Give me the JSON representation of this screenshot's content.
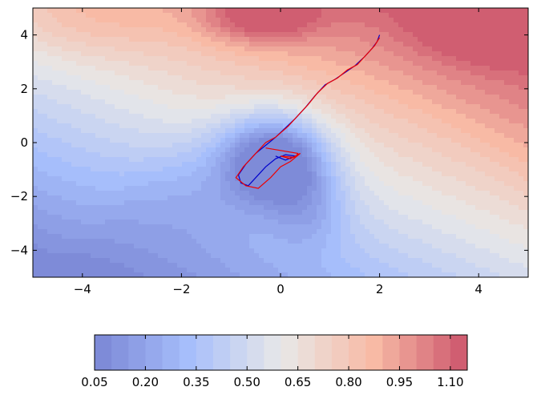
{
  "chart_data": {
    "type": "contour",
    "title": "",
    "xlabel": "",
    "ylabel": "",
    "xlim": [
      -5,
      5
    ],
    "ylim": [
      -5,
      5
    ],
    "xticks": [
      -4,
      -2,
      0,
      2,
      4
    ],
    "yticks": [
      -4,
      -2,
      0,
      2,
      4
    ],
    "xtick_labels": [
      "−4",
      "−2",
      "0",
      "2",
      "4"
    ],
    "ytick_labels": [
      "−4",
      "−2",
      "0",
      "2",
      "4"
    ],
    "colormap": "coolwarm",
    "contour_levels": [
      0.05,
      0.1,
      0.15,
      0.2,
      0.25,
      0.3,
      0.35,
      0.4,
      0.45,
      0.5,
      0.55,
      0.6,
      0.65,
      0.7,
      0.75,
      0.8,
      0.85,
      0.9,
      0.95,
      1.0,
      1.05,
      1.1,
      1.15
    ],
    "colorbar": {
      "orientation": "horizontal",
      "position": "bottom",
      "ticks": [
        0.05,
        0.2,
        0.35,
        0.5,
        0.65,
        0.8,
        0.95,
        1.1
      ],
      "tick_labels": [
        "0.05",
        "0.20",
        "0.35",
        "0.50",
        "0.65",
        "0.80",
        "0.95",
        "1.10"
      ],
      "range": [
        0.05,
        1.15
      ]
    },
    "minimum": {
      "x": -0.1,
      "y": -0.6
    },
    "series": [
      {
        "color": "#0000cc",
        "points": [
          [
            2.0,
            4.0
          ],
          [
            1.95,
            3.75
          ],
          [
            1.85,
            3.5
          ],
          [
            1.7,
            3.2
          ],
          [
            1.5,
            2.85
          ],
          [
            1.3,
            2.6
          ],
          [
            1.1,
            2.35
          ],
          [
            0.9,
            2.15
          ],
          [
            0.7,
            1.75
          ],
          [
            0.5,
            1.3
          ],
          [
            0.3,
            0.9
          ],
          [
            0.1,
            0.55
          ],
          [
            -0.1,
            0.2
          ],
          [
            -0.3,
            -0.1
          ],
          [
            -0.5,
            -0.4
          ],
          [
            -0.7,
            -0.8
          ],
          [
            -0.85,
            -1.2
          ],
          [
            -0.8,
            -1.5
          ],
          [
            -0.65,
            -1.6
          ],
          [
            -0.5,
            -1.3
          ],
          [
            -0.3,
            -0.9
          ],
          [
            -0.1,
            -0.6
          ],
          [
            0.1,
            -0.45
          ],
          [
            0.3,
            -0.5
          ],
          [
            0.1,
            -0.65
          ],
          [
            -0.1,
            -0.5
          ]
        ]
      },
      {
        "color": "#ee0000",
        "points": [
          [
            2.0,
            3.9
          ],
          [
            1.9,
            3.6
          ],
          [
            1.75,
            3.3
          ],
          [
            1.55,
            2.9
          ],
          [
            1.35,
            2.7
          ],
          [
            1.15,
            2.4
          ],
          [
            0.95,
            2.2
          ],
          [
            0.75,
            1.85
          ],
          [
            0.55,
            1.4
          ],
          [
            0.35,
            1.0
          ],
          [
            0.15,
            0.6
          ],
          [
            -0.1,
            0.2
          ],
          [
            -0.3,
            0.0
          ],
          [
            -0.55,
            -0.5
          ],
          [
            -0.75,
            -0.9
          ],
          [
            -0.9,
            -1.3
          ],
          [
            -0.7,
            -1.6
          ],
          [
            -0.45,
            -1.7
          ],
          [
            -0.2,
            -1.3
          ],
          [
            0.0,
            -0.9
          ],
          [
            0.2,
            -0.7
          ],
          [
            0.4,
            -0.4
          ],
          [
            0.2,
            -0.6
          ],
          [
            0.0,
            -0.5
          ],
          [
            0.3,
            -0.55
          ],
          [
            0.35,
            -0.4
          ],
          [
            -0.3,
            -0.2
          ]
        ]
      }
    ]
  }
}
